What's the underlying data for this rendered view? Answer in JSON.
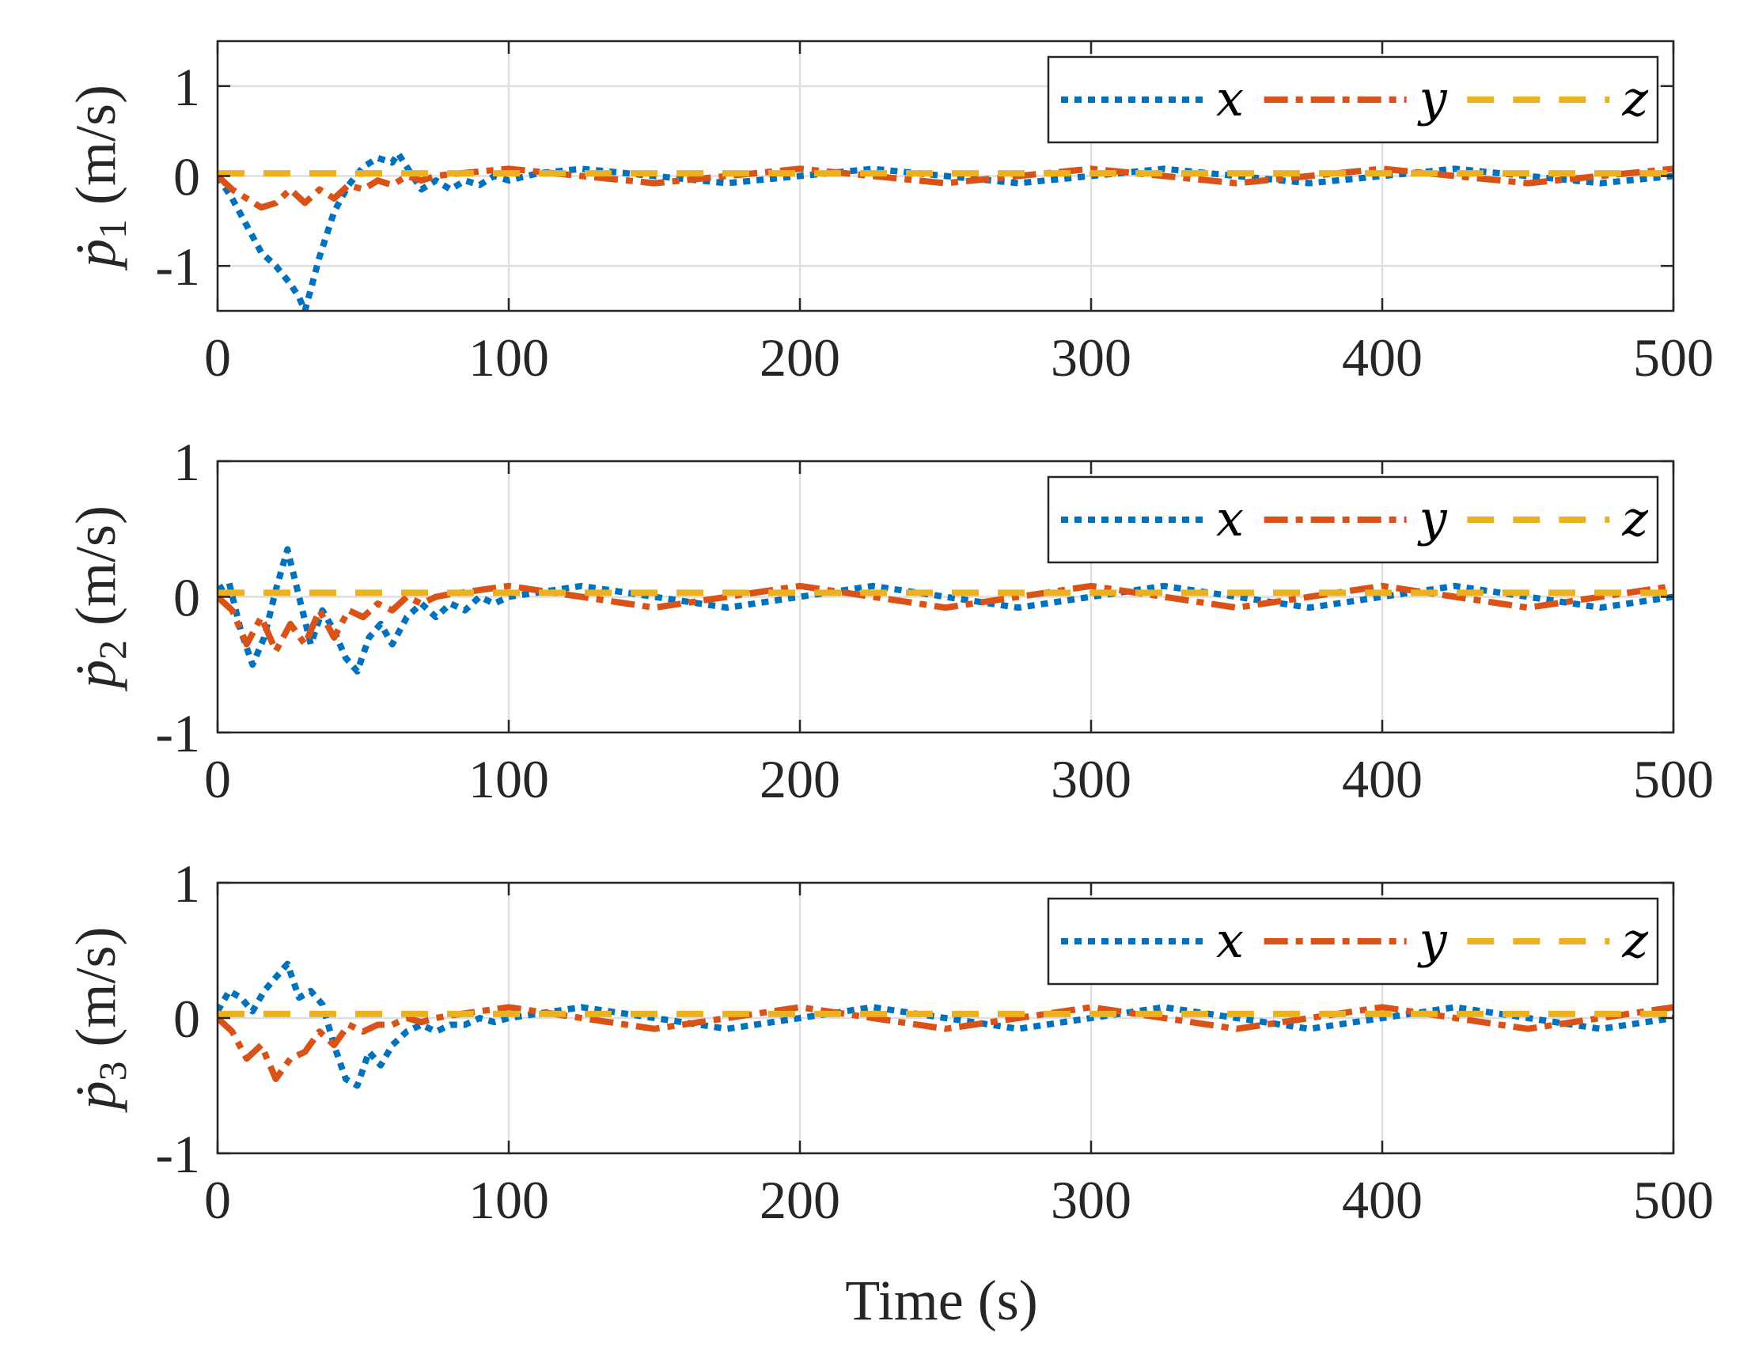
{
  "chart_data": [
    {
      "type": "line",
      "ylabel_symbol": "ṗ",
      "ylabel_subscript": "1",
      "ylabel_unit": "(m/s)",
      "xlim": [
        0,
        500
      ],
      "ylim": [
        -1.5,
        1.5
      ],
      "xticks": [
        "0",
        "100",
        "200",
        "300",
        "400",
        "500"
      ],
      "yticks": [
        {
          "v": 1,
          "t": "1"
        },
        {
          "v": 0,
          "t": "0"
        },
        {
          "v": -1,
          "t": "-1"
        }
      ],
      "grid": true,
      "legend": {
        "position": "top-right",
        "orientation": "horizontal"
      },
      "series": [
        {
          "name": "x",
          "color": "#0072BD",
          "style": "dotted",
          "x": [
            0,
            5,
            10,
            15,
            20,
            25,
            28,
            30,
            35,
            40,
            45,
            50,
            55,
            60,
            62,
            65,
            70,
            75,
            80,
            85,
            90,
            95,
            100,
            110,
            125,
            150,
            175,
            200,
            225,
            250,
            275,
            300,
            325,
            350,
            375,
            400,
            425,
            450,
            475,
            500
          ],
          "y": [
            0,
            -0.25,
            -0.55,
            -0.85,
            -1.0,
            -1.2,
            -1.35,
            -1.5,
            -0.9,
            -0.4,
            -0.1,
            0.1,
            0.2,
            0.15,
            0.25,
            0.1,
            -0.15,
            -0.05,
            -0.15,
            -0.05,
            -0.1,
            0.0,
            -0.05,
            0.03,
            0.08,
            0.0,
            -0.08,
            0.0,
            0.08,
            0.0,
            -0.08,
            0.0,
            0.08,
            0.0,
            -0.08,
            0.0,
            0.08,
            0.0,
            -0.08,
            0.0
          ]
        },
        {
          "name": "y",
          "color": "#D95319",
          "style": "dash-dot",
          "x": [
            0,
            5,
            10,
            15,
            20,
            25,
            30,
            35,
            40,
            45,
            50,
            55,
            60,
            65,
            70,
            75,
            80,
            90,
            100,
            125,
            150,
            175,
            200,
            225,
            250,
            275,
            300,
            325,
            350,
            375,
            400,
            425,
            450,
            475,
            500
          ],
          "y": [
            0,
            -0.15,
            -0.25,
            -0.35,
            -0.3,
            -0.15,
            -0.3,
            -0.15,
            -0.25,
            -0.1,
            -0.15,
            -0.05,
            -0.1,
            0.0,
            -0.05,
            0.0,
            0.02,
            0.05,
            0.08,
            0.0,
            -0.08,
            0.0,
            0.08,
            0.0,
            -0.08,
            0.0,
            0.08,
            0.0,
            -0.08,
            0.0,
            0.08,
            0.0,
            -0.08,
            0.0,
            0.08
          ]
        },
        {
          "name": "z",
          "color": "#EDB120",
          "style": "dashed",
          "x": [
            0,
            500
          ],
          "y": [
            0.03,
            0.03
          ]
        }
      ]
    },
    {
      "type": "line",
      "ylabel_symbol": "ṗ",
      "ylabel_subscript": "2",
      "ylabel_unit": "(m/s)",
      "xlim": [
        0,
        500
      ],
      "ylim": [
        -1,
        1
      ],
      "xticks": [
        "0",
        "100",
        "200",
        "300",
        "400",
        "500"
      ],
      "yticks": [
        {
          "v": 1,
          "t": "1"
        },
        {
          "v": 0,
          "t": "0"
        },
        {
          "v": -1,
          "t": "-1"
        }
      ],
      "grid": true,
      "legend": {
        "position": "top-right",
        "orientation": "horizontal"
      },
      "series": [
        {
          "name": "x",
          "color": "#0072BD",
          "style": "dotted",
          "x": [
            0,
            4,
            8,
            12,
            16,
            20,
            24,
            28,
            32,
            36,
            40,
            44,
            48,
            52,
            56,
            60,
            65,
            70,
            75,
            80,
            85,
            90,
            95,
            100,
            125,
            150,
            175,
            200,
            225,
            250,
            275,
            300,
            325,
            350,
            375,
            400,
            425,
            450,
            475,
            500
          ],
          "y": [
            0.05,
            0.1,
            -0.25,
            -0.5,
            -0.3,
            0.05,
            0.35,
            0.0,
            -0.35,
            -0.1,
            -0.25,
            -0.45,
            -0.55,
            -0.3,
            -0.2,
            -0.35,
            -0.15,
            -0.05,
            -0.15,
            -0.05,
            -0.1,
            0.0,
            -0.05,
            0.0,
            0.08,
            0.0,
            -0.08,
            0.0,
            0.08,
            0.0,
            -0.08,
            0.0,
            0.08,
            0.0,
            -0.08,
            0.0,
            0.08,
            0.0,
            -0.08,
            0.0
          ]
        },
        {
          "name": "y",
          "color": "#D95319",
          "style": "dash-dot",
          "x": [
            0,
            5,
            10,
            15,
            20,
            25,
            30,
            35,
            40,
            45,
            50,
            55,
            60,
            65,
            70,
            75,
            80,
            90,
            100,
            125,
            150,
            175,
            200,
            225,
            250,
            275,
            300,
            325,
            350,
            375,
            400,
            425,
            450,
            475,
            500
          ],
          "y": [
            0,
            -0.1,
            -0.35,
            -0.15,
            -0.4,
            -0.2,
            -0.35,
            -0.1,
            -0.3,
            -0.1,
            -0.15,
            -0.05,
            -0.1,
            0.0,
            -0.05,
            0.0,
            0.02,
            0.05,
            0.08,
            0.0,
            -0.08,
            0.0,
            0.08,
            0.0,
            -0.08,
            0.0,
            0.08,
            0.0,
            -0.08,
            0.0,
            0.08,
            0.0,
            -0.08,
            0.0,
            0.08
          ]
        },
        {
          "name": "z",
          "color": "#EDB120",
          "style": "dashed",
          "x": [
            0,
            500
          ],
          "y": [
            0.03,
            0.03
          ]
        }
      ]
    },
    {
      "type": "line",
      "ylabel_symbol": "ṗ",
      "ylabel_subscript": "3",
      "ylabel_unit": "(m/s)",
      "xlim": [
        0,
        500
      ],
      "ylim": [
        -1,
        1
      ],
      "xticks": [
        "0",
        "100",
        "200",
        "300",
        "400",
        "500"
      ],
      "yticks": [
        {
          "v": 1,
          "t": "1"
        },
        {
          "v": 0,
          "t": "0"
        },
        {
          "v": -1,
          "t": "-1"
        }
      ],
      "grid": true,
      "legend": {
        "position": "top-right",
        "orientation": "horizontal"
      },
      "series": [
        {
          "name": "x",
          "color": "#0072BD",
          "style": "dotted",
          "x": [
            0,
            4,
            8,
            12,
            16,
            20,
            24,
            28,
            32,
            36,
            40,
            44,
            48,
            52,
            56,
            60,
            65,
            70,
            75,
            80,
            85,
            90,
            95,
            100,
            125,
            150,
            175,
            200,
            225,
            250,
            275,
            300,
            325,
            350,
            375,
            400,
            425,
            450,
            475,
            500
          ],
          "y": [
            0.05,
            0.2,
            0.15,
            0.05,
            0.2,
            0.3,
            0.4,
            0.15,
            0.2,
            0.1,
            -0.2,
            -0.45,
            -0.5,
            -0.25,
            -0.35,
            -0.2,
            -0.1,
            -0.05,
            -0.1,
            -0.05,
            -0.05,
            0.0,
            -0.03,
            0.0,
            0.08,
            0.0,
            -0.08,
            0.0,
            0.08,
            0.0,
            -0.08,
            0.0,
            0.08,
            0.0,
            -0.08,
            0.0,
            0.08,
            0.0,
            -0.08,
            0.0
          ]
        },
        {
          "name": "y",
          "color": "#D95319",
          "style": "dash-dot",
          "x": [
            0,
            5,
            10,
            15,
            20,
            25,
            30,
            35,
            40,
            45,
            50,
            55,
            60,
            65,
            70,
            75,
            80,
            90,
            100,
            125,
            150,
            175,
            200,
            225,
            250,
            275,
            300,
            325,
            350,
            375,
            400,
            425,
            450,
            475,
            500
          ],
          "y": [
            0,
            -0.1,
            -0.3,
            -0.2,
            -0.45,
            -0.3,
            -0.25,
            -0.1,
            -0.2,
            -0.05,
            -0.1,
            -0.05,
            -0.05,
            0.0,
            -0.03,
            0.0,
            0.02,
            0.05,
            0.08,
            0.0,
            -0.08,
            0.0,
            0.08,
            0.0,
            -0.08,
            0.0,
            0.08,
            0.0,
            -0.08,
            0.0,
            0.08,
            0.0,
            -0.08,
            0.0,
            0.08
          ]
        },
        {
          "name": "z",
          "color": "#EDB120",
          "style": "dashed",
          "x": [
            0,
            500
          ],
          "y": [
            0.03,
            0.03
          ]
        }
      ]
    }
  ],
  "xlabel": "Time (s)"
}
